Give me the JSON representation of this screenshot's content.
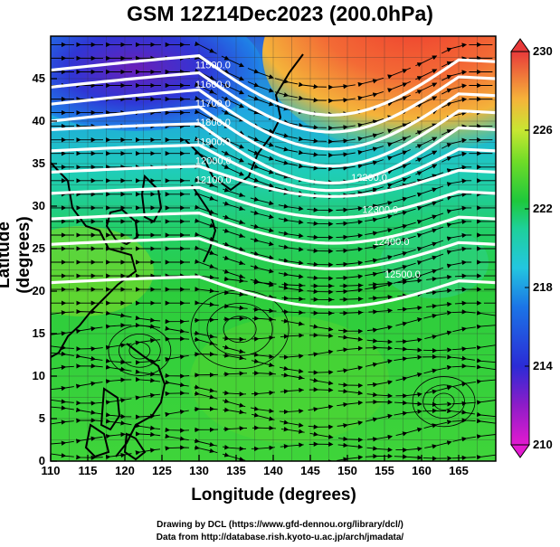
{
  "title": "GSM 12Z14Dec2023 (200.0hPa)",
  "xaxis": {
    "label": "Longitude (degrees)",
    "ticks": [
      "110",
      "115",
      "120",
      "125",
      "130",
      "135",
      "140",
      "145",
      "150",
      "155",
      "160",
      "165"
    ],
    "values": [
      110,
      115,
      120,
      125,
      130,
      135,
      140,
      145,
      150,
      155,
      160,
      165
    ],
    "range": [
      110,
      170
    ]
  },
  "yaxis": {
    "label": "Latitude  (degrees)",
    "ticks": [
      "0",
      "5",
      "10",
      "15",
      "20",
      "25",
      "30",
      "35",
      "40",
      "45"
    ],
    "values": [
      0,
      5,
      10,
      15,
      20,
      25,
      30,
      35,
      40,
      45
    ],
    "range": [
      0,
      50
    ]
  },
  "colorbar": {
    "ticks": [
      "210",
      "214",
      "218",
      "222",
      "226",
      "230"
    ],
    "values": [
      210,
      214,
      218,
      222,
      226,
      230
    ],
    "range": [
      210,
      230
    ],
    "colors": [
      "#e21ad0",
      "#8e1cc8",
      "#2b2bd6",
      "#1b74e6",
      "#23c6e0",
      "#1ed09a",
      "#1ec83c",
      "#6fdc28",
      "#c8e632",
      "#f6b23a",
      "#f07a3a",
      "#e83a3a"
    ]
  },
  "contour_labels": [
    "11500.0",
    "11600.0",
    "11700.0",
    "11800.0",
    "11900.0",
    "12000.0",
    "12100.0",
    "12200.0",
    "12300.0",
    "12400.0",
    "12500.0"
  ],
  "credits": {
    "line1": "Drawing by DCL (https://www.gfd-dennou.org/library/dcl/)",
    "line2": "Data from http://database.rish.kyoto-u.ac.jp/arch/jmadata/"
  }
}
